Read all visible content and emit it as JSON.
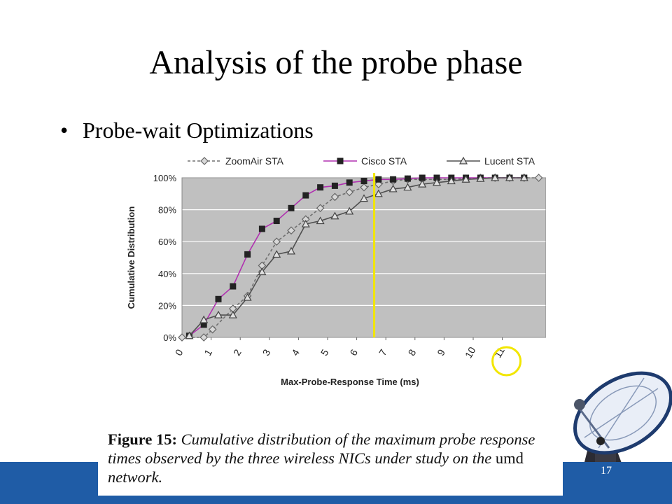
{
  "title": "Analysis of the probe phase",
  "bullet": {
    "marker": "•",
    "text": "Probe-wait Optimizations"
  },
  "page_number": "17",
  "caption": {
    "label": "Figure 15:",
    "text_italic_1": "Cumulative distribution of the maximum probe response times observed by the three wireless NICs under study on the",
    "text_roman": "umd",
    "text_italic_2": "network."
  },
  "colors": {
    "footer": "#1f5ca6",
    "cisco": "#b030b0",
    "zoomair": "#707070",
    "lucent": "#505050",
    "marker_line": "#f2e600",
    "plot_bg": "#c0c0c0"
  },
  "icons": {
    "bottom_right": "satellite-dish-icon"
  },
  "chart_data": {
    "type": "line",
    "xlabel": "Max-Probe-Response Time (ms)",
    "ylabel": "Cumulative Distribution",
    "x_ticks": [
      "0",
      "1",
      "2",
      "3",
      "4",
      "5",
      "6",
      "7",
      "8",
      "9",
      "10",
      "11"
    ],
    "y_ticks": [
      "0%",
      "20%",
      "40%",
      "60%",
      "80%",
      "100%"
    ],
    "xlim": [
      0,
      12.5
    ],
    "ylim": [
      0,
      100
    ],
    "grid": true,
    "legend_position": "top",
    "series": [
      {
        "name": "ZoomAir STA",
        "marker": "diamond",
        "dash": true,
        "x": [
          0,
          0.75,
          1.05,
          1.75,
          2.25,
          2.75,
          3.25,
          3.75,
          4.25,
          4.75,
          5.25,
          5.75,
          6.25,
          6.75,
          7.25,
          7.75,
          8.25,
          8.75,
          9.25,
          9.75,
          10.25,
          10.75,
          11.25,
          11.75,
          12.25
        ],
        "y": [
          0,
          0,
          5,
          18,
          26,
          45,
          60,
          67,
          74,
          81,
          88,
          91,
          94,
          96,
          98,
          99,
          99,
          99,
          99,
          99.5,
          100,
          100,
          100,
          100,
          100
        ]
      },
      {
        "name": "Cisco STA",
        "marker": "square",
        "dash": false,
        "x": [
          0.25,
          0.75,
          1.25,
          1.75,
          2.25,
          2.75,
          3.25,
          3.75,
          4.25,
          4.75,
          5.25,
          5.75,
          6.25,
          6.75,
          7.25,
          7.75,
          8.25,
          8.75,
          9.25,
          9.75,
          10.25,
          10.75,
          11.25,
          11.75
        ],
        "y": [
          1,
          8,
          24,
          32,
          52,
          68,
          73,
          81,
          89,
          94,
          95,
          97,
          98,
          99,
          99,
          99.5,
          100,
          100,
          100,
          100,
          100,
          100,
          100,
          100
        ]
      },
      {
        "name": "Lucent STA",
        "marker": "triangle",
        "dash": false,
        "x": [
          0.25,
          0.75,
          1.25,
          1.75,
          2.25,
          2.75,
          3.25,
          3.75,
          4.25,
          4.75,
          5.25,
          5.75,
          6.25,
          6.75,
          7.25,
          7.75,
          8.25,
          8.75,
          9.25,
          9.75,
          10.25,
          10.75,
          11.25,
          11.75
        ],
        "y": [
          1,
          11,
          14,
          14,
          25,
          41,
          52,
          54,
          71,
          73,
          76,
          79,
          87,
          90,
          93,
          94,
          96,
          97,
          98,
          99,
          99.5,
          100,
          100,
          100
        ]
      }
    ],
    "annotations": {
      "vertical_line_x": 6.6,
      "circled_tick": "11"
    }
  }
}
